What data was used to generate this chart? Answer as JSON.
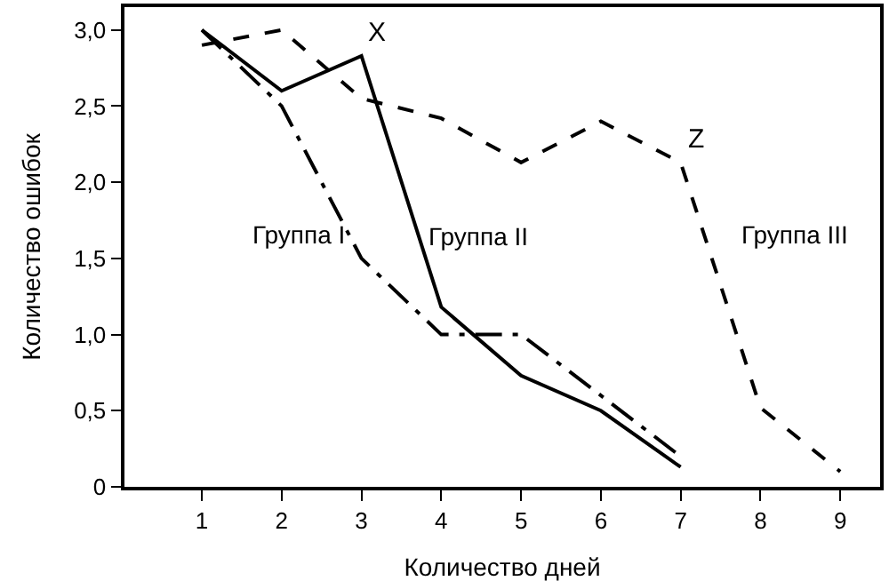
{
  "chart_data": {
    "type": "line",
    "xlabel": "Количество дней",
    "ylabel": "Количество ошибок",
    "x": [
      1,
      2,
      3,
      4,
      5,
      6,
      7,
      8,
      9
    ],
    "series": [
      {
        "name": "Группа I",
        "color": "#000000",
        "line_style": "dashdot",
        "values": [
          3.0,
          2.5,
          1.5,
          1.0,
          1.0,
          0.6,
          0.2,
          null,
          null
        ]
      },
      {
        "name": "Группа II",
        "color": "#000000",
        "line_style": "solid",
        "values": [
          3.0,
          2.6,
          2.83,
          1.18,
          0.73,
          0.5,
          0.13,
          null,
          null
        ]
      },
      {
        "name": "Группа III",
        "color": "#000000",
        "line_style": "dashed",
        "values": [
          2.9,
          3.0,
          2.55,
          2.42,
          2.13,
          2.4,
          2.13,
          0.52,
          0.1
        ]
      }
    ],
    "annotations": [
      {
        "text": "X",
        "x": 3,
        "y": 2.83
      },
      {
        "text": "Z",
        "x": 7,
        "y": 2.13
      }
    ],
    "xlim": [
      0.03,
      9.5
    ],
    "ylim": [
      0,
      3.15
    ],
    "xticks": [
      1,
      2,
      3,
      4,
      5,
      6,
      7,
      8,
      9
    ],
    "yticks": [
      0,
      {
        "value": 0.5,
        "label": "0,5"
      },
      {
        "value": 1.0,
        "label": "1,0"
      },
      {
        "value": 1.5,
        "label": "1,5"
      },
      {
        "value": 2.0,
        "label": "2,0"
      },
      {
        "value": 2.5,
        "label": "2,5"
      },
      {
        "value": 3.0,
        "label": "3,0"
      }
    ],
    "legend": false,
    "marker": "none"
  }
}
